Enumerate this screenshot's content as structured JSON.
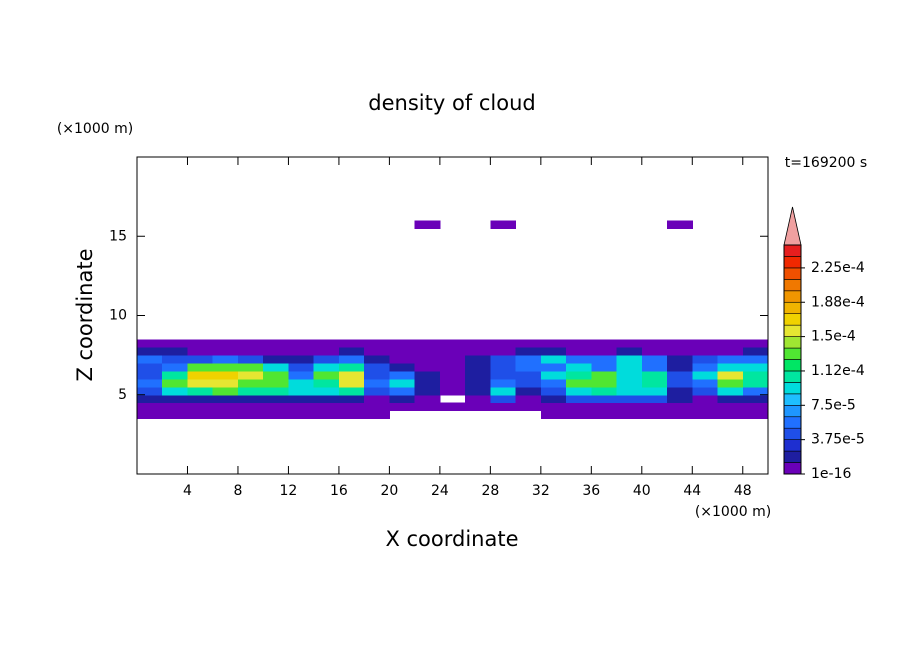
{
  "chart_data": {
    "type": "contour",
    "title": "density of cloud",
    "xlabel": "X coordinate",
    "ylabel": "Z coordinate",
    "x_unit": "(×1000 m)",
    "y_unit": "(×1000 m)",
    "time_label": "t=169200 s",
    "xlim": [
      0,
      50
    ],
    "ylim": [
      0,
      20
    ],
    "xticks": [
      4,
      8,
      12,
      16,
      20,
      24,
      28,
      32,
      36,
      40,
      44,
      48
    ],
    "yticks": [
      5,
      10,
      15
    ],
    "field": {
      "x": [
        1,
        3,
        5,
        7,
        9,
        11,
        13,
        15,
        17,
        19,
        21,
        23,
        25,
        27,
        29,
        31,
        33,
        35,
        37,
        39,
        41,
        43,
        45,
        47,
        49
      ],
      "z": [
        3.75,
        4.25,
        4.75,
        5.25,
        5.75,
        6.25,
        6.75,
        7.25,
        7.75,
        8.25,
        15.75
      ],
      "values": [
        [
          1e-16,
          1e-16,
          1e-16,
          1e-16,
          1e-16,
          1e-16,
          1e-16,
          1e-16,
          1e-16,
          1e-16,
          null,
          null,
          null,
          null,
          null,
          null,
          1e-16,
          1e-16,
          1e-16,
          1e-16,
          1e-16,
          1e-16,
          1e-16,
          1e-16,
          1e-16
        ],
        [
          1e-16,
          1e-16,
          1e-16,
          1e-16,
          1e-16,
          1e-16,
          1e-16,
          1e-16,
          1e-16,
          1e-16,
          1e-16,
          1e-16,
          1e-16,
          1e-16,
          1e-16,
          1e-16,
          1e-16,
          1e-16,
          1e-16,
          1e-16,
          1e-16,
          1e-16,
          1e-16,
          1e-16,
          1e-16
        ],
        [
          2e-05,
          2e-05,
          2e-05,
          2e-05,
          2e-05,
          2e-05,
          2e-05,
          2e-05,
          2e-05,
          1e-16,
          2e-05,
          1e-16,
          null,
          1e-16,
          4e-05,
          1e-16,
          2e-05,
          4e-05,
          4e-05,
          4e-05,
          4e-05,
          2e-05,
          1e-16,
          2e-05,
          2e-05
        ],
        [
          4e-05,
          9e-05,
          0.00011,
          0.00013,
          0.00011,
          0.00011,
          9e-05,
          9e-05,
          0.00011,
          4e-05,
          6e-05,
          2e-05,
          1e-16,
          2e-05,
          9e-05,
          2e-05,
          4e-05,
          9e-05,
          0.00011,
          9e-05,
          9e-05,
          2e-05,
          4e-05,
          9e-05,
          6e-05
        ],
        [
          6e-05,
          0.00013,
          0.00015,
          0.00015,
          0.00013,
          0.00013,
          9e-05,
          0.00011,
          0.00015,
          6e-05,
          9e-05,
          2e-05,
          1e-16,
          2e-05,
          6e-05,
          4e-05,
          6e-05,
          0.00013,
          0.00013,
          9e-05,
          0.00011,
          4e-05,
          6e-05,
          0.00013,
          0.00011
        ],
        [
          4e-05,
          0.00011,
          0.00017,
          0.00017,
          0.00015,
          0.00013,
          6e-05,
          0.00013,
          0.00015,
          4e-05,
          6e-05,
          2e-05,
          1e-16,
          2e-05,
          4e-05,
          4e-05,
          9e-05,
          0.00011,
          0.00013,
          9e-05,
          0.00011,
          4e-05,
          9e-05,
          0.00015,
          0.00011
        ],
        [
          4e-05,
          6e-05,
          0.00013,
          0.00013,
          0.00013,
          9e-05,
          4e-05,
          9e-05,
          0.00011,
          4e-05,
          2e-05,
          1e-16,
          1e-16,
          2e-05,
          4e-05,
          6e-05,
          6e-05,
          9e-05,
          6e-05,
          9e-05,
          6e-05,
          2e-05,
          6e-05,
          9e-05,
          9e-05
        ],
        [
          6e-05,
          4e-05,
          4e-05,
          6e-05,
          4e-05,
          2e-05,
          2e-05,
          4e-05,
          6e-05,
          2e-05,
          1e-16,
          1e-16,
          1e-16,
          2e-05,
          4e-05,
          6e-05,
          9e-05,
          6e-05,
          6e-05,
          9e-05,
          6e-05,
          2e-05,
          4e-05,
          6e-05,
          6e-05
        ],
        [
          2e-05,
          2e-05,
          1e-16,
          1e-16,
          1e-16,
          1e-16,
          1e-16,
          1e-16,
          2e-05,
          1e-16,
          1e-16,
          1e-16,
          1e-16,
          1e-16,
          1e-16,
          2e-05,
          2e-05,
          1e-16,
          1e-16,
          2e-05,
          1e-16,
          1e-16,
          1e-16,
          1e-16,
          2e-05
        ],
        [
          1e-16,
          1e-16,
          1e-16,
          1e-16,
          1e-16,
          1e-16,
          1e-16,
          1e-16,
          1e-16,
          1e-16,
          1e-16,
          1e-16,
          1e-16,
          1e-16,
          1e-16,
          1e-16,
          1e-16,
          1e-16,
          1e-16,
          1e-16,
          1e-16,
          1e-16,
          1e-16,
          1e-16,
          1e-16
        ],
        [
          null,
          null,
          null,
          null,
          null,
          null,
          null,
          null,
          null,
          null,
          null,
          1e-16,
          null,
          null,
          1e-16,
          null,
          null,
          null,
          null,
          null,
          null,
          1e-16,
          null,
          null,
          null
        ]
      ]
    },
    "colorbar": {
      "lim": [
        0,
        0.00025
      ],
      "colors": [
        "#6a00b8",
        "#1e1ea0",
        "#1e2fd0",
        "#1f4fe8",
        "#2070ff",
        "#1e96ff",
        "#1ebeff",
        "#00dcdc",
        "#00e6a0",
        "#00e664",
        "#50e632",
        "#a0e632",
        "#e6e632",
        "#f0d200",
        "#f0b400",
        "#f09600",
        "#f07800",
        "#f05000",
        "#f02800",
        "#e61e1e"
      ],
      "over_color": "#f0a0a0",
      "ticks": [
        {
          "value": 1e-16,
          "label": "1e-16"
        },
        {
          "value": 3.75e-05,
          "label": "3.75e-5"
        },
        {
          "value": 7.5e-05,
          "label": "7.5e-5"
        },
        {
          "value": 0.0001125,
          "label": "1.12e-4"
        },
        {
          "value": 0.00015,
          "label": "1.5e-4"
        },
        {
          "value": 0.0001875,
          "label": "1.88e-4"
        },
        {
          "value": 0.000225,
          "label": "2.25e-4"
        }
      ]
    }
  }
}
